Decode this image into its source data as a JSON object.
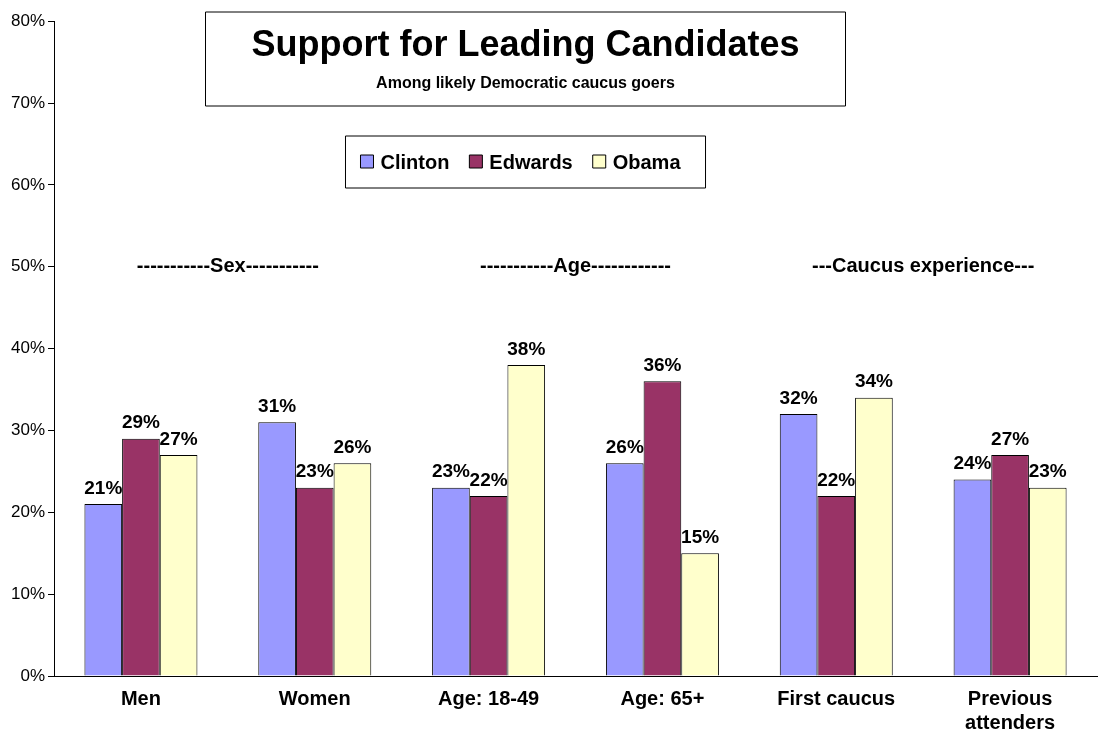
{
  "chart_data": {
    "type": "bar",
    "title": "Support for Leading Candidates",
    "subtitle": "Among likely Democratic caucus goers",
    "categories": [
      "Men",
      "Women",
      "Age: 18-49",
      "Age: 65+",
      "First caucus",
      "Previous attenders"
    ],
    "series": [
      {
        "name": "Clinton",
        "color": "#9999ff",
        "values": [
          21,
          31,
          23,
          26,
          32,
          24
        ],
        "value_labels": [
          "21%",
          "31%",
          "23%",
          "26%",
          "32%",
          "24%"
        ]
      },
      {
        "name": "Edwards",
        "color": "#993366",
        "values": [
          29,
          23,
          22,
          36,
          22,
          27
        ],
        "value_labels": [
          "29%",
          "23%",
          "22%",
          "36%",
          "22%",
          "27%"
        ]
      },
      {
        "name": "Obama",
        "color": "#ffffcc",
        "values": [
          27,
          26,
          38,
          15,
          34,
          23
        ],
        "value_labels": [
          "27%",
          "26%",
          "38%",
          "15%",
          "34%",
          "23%"
        ]
      }
    ],
    "ylim": [
      0,
      80
    ],
    "yticks": [
      {
        "value": 0,
        "label": "0%"
      },
      {
        "value": 10,
        "label": "10%"
      },
      {
        "value": 20,
        "label": "20%"
      },
      {
        "value": 30,
        "label": "30%"
      },
      {
        "value": 40,
        "label": "40%"
      },
      {
        "value": 50,
        "label": "50%"
      },
      {
        "value": 60,
        "label": "60%"
      },
      {
        "value": 70,
        "label": "70%"
      },
      {
        "value": 80,
        "label": "80%"
      }
    ],
    "legend": "top",
    "grid": false,
    "annotations": [
      "-----------Sex-----------",
      "-----------Age------------",
      "---Caucus experience---"
    ]
  }
}
